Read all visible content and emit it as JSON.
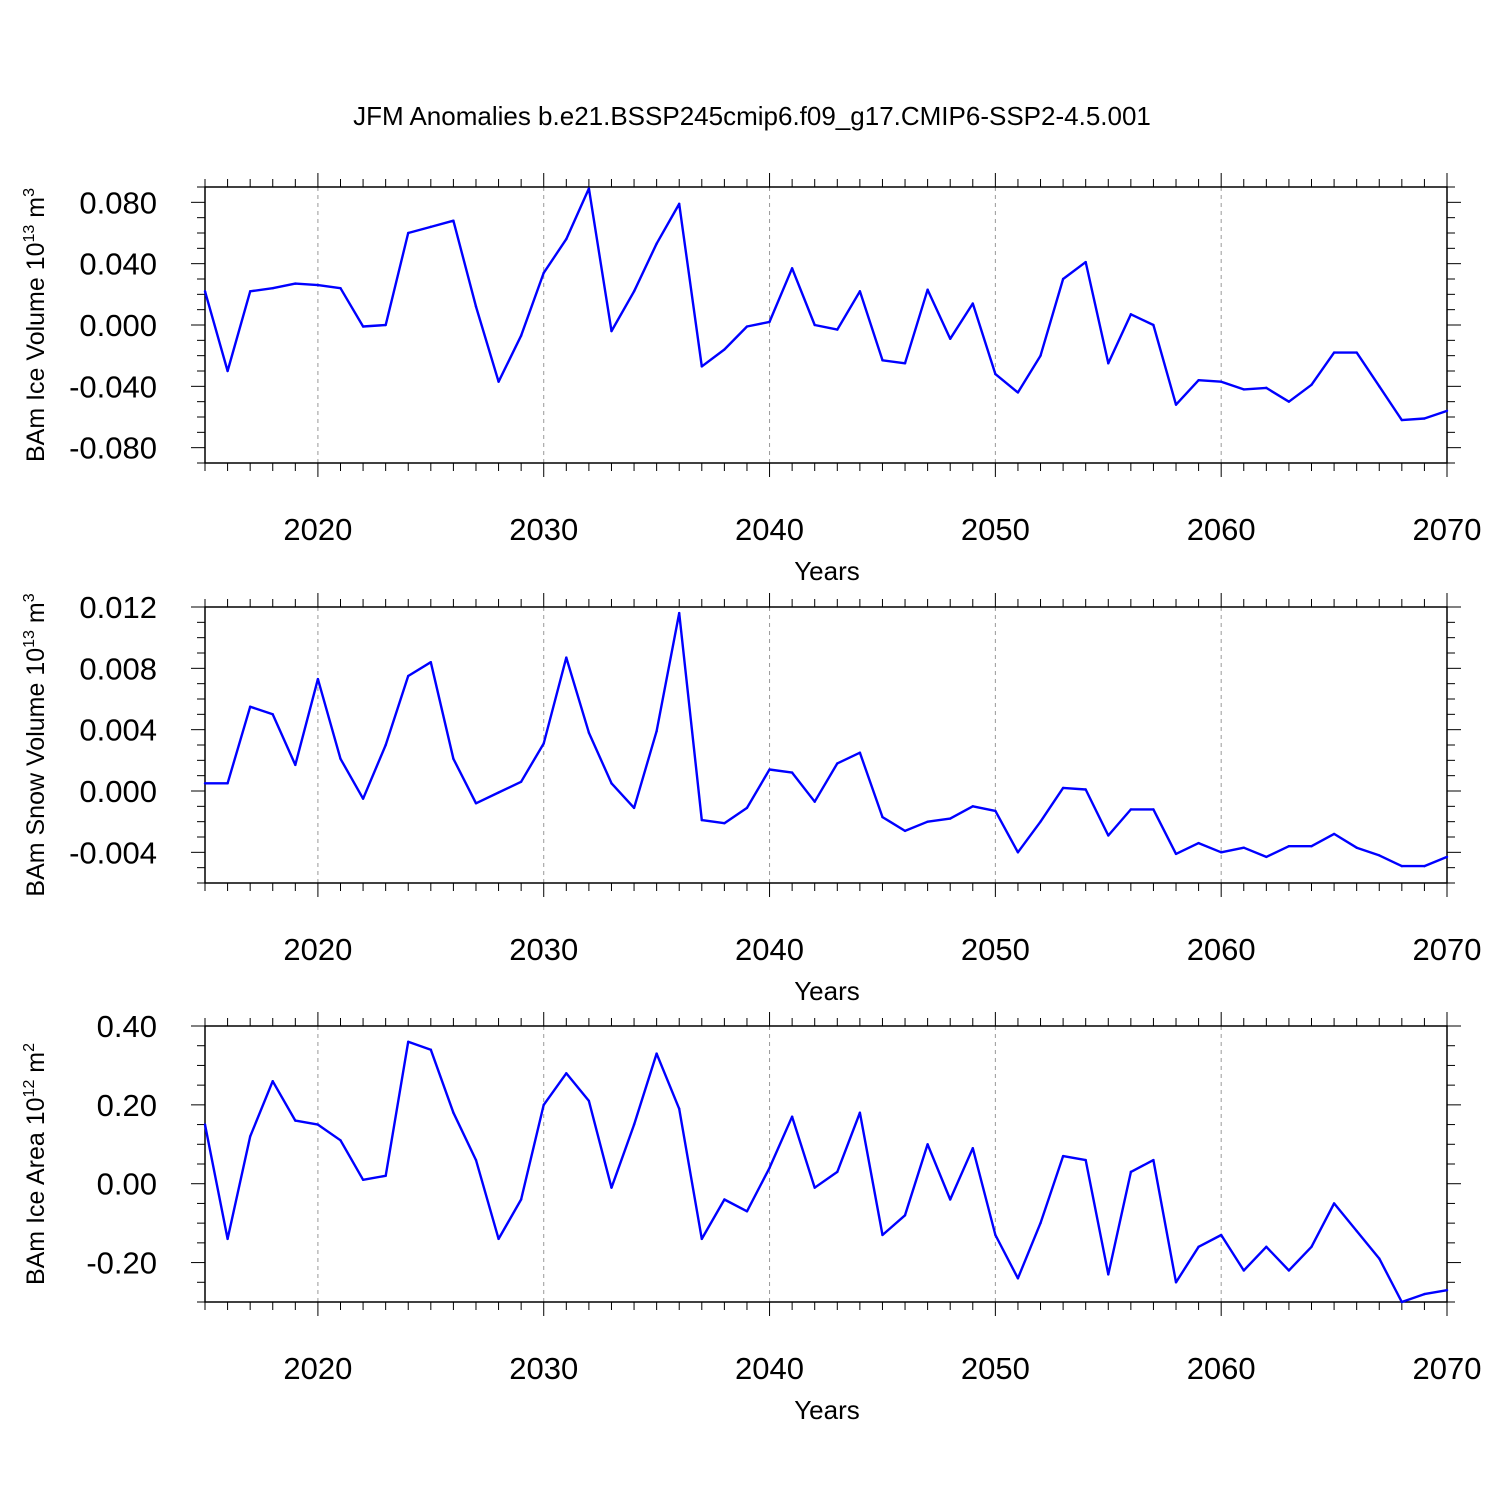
{
  "title": "JFM Anomalies b.e21.BSSP245cmip6.f09_g17.CMIP6-SSP2-4.5.001",
  "chart_data": [
    {
      "type": "line",
      "ylabel": "BAm Ice Volume 10",
      "ylabel_exp": "13",
      "ylabel_unit": "m",
      "ylabel_unit_exp": "3",
      "xlabel": "Years",
      "xlim": [
        2015,
        2070
      ],
      "ylim": [
        -0.09,
        0.09
      ],
      "x_ticks": [
        "2020",
        "2030",
        "2040",
        "2050",
        "2060",
        "2070"
      ],
      "y_ticks": [
        0.08,
        0.04,
        0.0,
        -0.04,
        -0.08
      ],
      "y_tick_labels": [
        "0.080",
        "0.040",
        "0.000",
        "-0.040",
        "-0.080"
      ],
      "grid": "vertical dashed at major x ticks",
      "color": "#0000ff",
      "x": [
        2015,
        2016,
        2017,
        2018,
        2019,
        2020,
        2021,
        2022,
        2023,
        2024,
        2025,
        2026,
        2027,
        2028,
        2029,
        2030,
        2031,
        2032,
        2033,
        2034,
        2035,
        2036,
        2037,
        2038,
        2039,
        2040,
        2041,
        2042,
        2043,
        2044,
        2045,
        2046,
        2047,
        2048,
        2049,
        2050,
        2051,
        2052,
        2053,
        2054,
        2055,
        2056,
        2057,
        2058,
        2059,
        2060,
        2061,
        2062,
        2063,
        2064,
        2065,
        2066,
        2067,
        2068,
        2069,
        2070
      ],
      "values": [
        0.022,
        -0.03,
        0.022,
        0.024,
        0.027,
        0.026,
        0.024,
        -0.001,
        0.0,
        0.06,
        0.064,
        0.068,
        0.012,
        -0.037,
        -0.007,
        0.034,
        0.056,
        0.089,
        -0.004,
        0.022,
        0.053,
        0.079,
        -0.027,
        -0.016,
        -0.001,
        0.002,
        0.037,
        0.0,
        -0.003,
        0.022,
        -0.023,
        -0.025,
        0.023,
        -0.009,
        0.014,
        -0.032,
        -0.044,
        -0.02,
        0.03,
        0.041,
        -0.025,
        0.007,
        0.0,
        -0.052,
        -0.036,
        -0.037,
        -0.042,
        -0.041,
        -0.05,
        -0.039,
        -0.018,
        -0.018,
        -0.04,
        -0.062,
        -0.061,
        -0.056
      ]
    },
    {
      "type": "line",
      "ylabel": "BAm Snow Volume 10",
      "ylabel_exp": "13",
      "ylabel_unit": "m",
      "ylabel_unit_exp": "3",
      "xlabel": "Years",
      "xlim": [
        2015,
        2070
      ],
      "ylim": [
        -0.006,
        0.012
      ],
      "x_ticks": [
        "2020",
        "2030",
        "2040",
        "2050",
        "2060",
        "2070"
      ],
      "y_ticks": [
        0.012,
        0.008,
        0.004,
        0.0,
        -0.004
      ],
      "y_tick_labels": [
        "0.012",
        "0.008",
        "0.004",
        "0.000",
        "-0.004"
      ],
      "grid": "vertical dashed at major x ticks",
      "color": "#0000ff",
      "x": [
        2015,
        2016,
        2017,
        2018,
        2019,
        2020,
        2021,
        2022,
        2023,
        2024,
        2025,
        2026,
        2027,
        2028,
        2029,
        2030,
        2031,
        2032,
        2033,
        2034,
        2035,
        2036,
        2037,
        2038,
        2039,
        2040,
        2041,
        2042,
        2043,
        2044,
        2045,
        2046,
        2047,
        2048,
        2049,
        2050,
        2051,
        2052,
        2053,
        2054,
        2055,
        2056,
        2057,
        2058,
        2059,
        2060,
        2061,
        2062,
        2063,
        2064,
        2065,
        2066,
        2067,
        2068,
        2069,
        2070
      ],
      "values": [
        0.0005,
        0.0005,
        0.0055,
        0.005,
        0.0017,
        0.0073,
        0.0021,
        -0.0005,
        0.003,
        0.0075,
        0.0084,
        0.0021,
        -0.0008,
        -0.0001,
        0.0006,
        0.0031,
        0.0087,
        0.0038,
        0.0005,
        -0.0011,
        0.0039,
        0.0116,
        -0.0019,
        -0.0021,
        -0.0011,
        0.0014,
        0.0012,
        -0.0007,
        0.0018,
        0.0025,
        -0.0017,
        -0.0026,
        -0.002,
        -0.0018,
        -0.001,
        -0.0013,
        -0.004,
        -0.002,
        0.0002,
        0.0001,
        -0.0029,
        -0.0012,
        -0.0012,
        -0.0041,
        -0.0034,
        -0.004,
        -0.0037,
        -0.0043,
        -0.0036,
        -0.0036,
        -0.0028,
        -0.0037,
        -0.0042,
        -0.0049,
        -0.0049,
        -0.0043
      ]
    },
    {
      "type": "line",
      "ylabel": "BAm Ice Area 10",
      "ylabel_exp": "12",
      "ylabel_unit": "m",
      "ylabel_unit_exp": "2",
      "xlabel": "Years",
      "xlim": [
        2015,
        2070
      ],
      "ylim": [
        -0.3,
        0.4
      ],
      "x_ticks": [
        "2020",
        "2030",
        "2040",
        "2050",
        "2060",
        "2070"
      ],
      "y_ticks": [
        0.4,
        0.2,
        0.0,
        -0.2
      ],
      "y_tick_labels": [
        "0.40",
        "0.20",
        "0.00",
        "-0.20"
      ],
      "grid": "vertical dashed at major x ticks",
      "color": "#0000ff",
      "x": [
        2015,
        2016,
        2017,
        2018,
        2019,
        2020,
        2021,
        2022,
        2023,
        2024,
        2025,
        2026,
        2027,
        2028,
        2029,
        2030,
        2031,
        2032,
        2033,
        2034,
        2035,
        2036,
        2037,
        2038,
        2039,
        2040,
        2041,
        2042,
        2043,
        2044,
        2045,
        2046,
        2047,
        2048,
        2049,
        2050,
        2051,
        2052,
        2053,
        2054,
        2055,
        2056,
        2057,
        2058,
        2059,
        2060,
        2061,
        2062,
        2063,
        2064,
        2065,
        2066,
        2067,
        2068,
        2069,
        2070
      ],
      "values": [
        0.15,
        -0.14,
        0.12,
        0.26,
        0.16,
        0.15,
        0.11,
        0.01,
        0.02,
        0.36,
        0.34,
        0.18,
        0.06,
        -0.14,
        -0.04,
        0.2,
        0.28,
        0.21,
        -0.01,
        0.15,
        0.33,
        0.19,
        -0.14,
        -0.04,
        -0.07,
        0.04,
        0.17,
        -0.01,
        0.03,
        0.18,
        -0.13,
        -0.08,
        0.1,
        -0.04,
        0.09,
        -0.13,
        -0.24,
        -0.1,
        0.07,
        0.06,
        -0.23,
        0.03,
        0.06,
        -0.25,
        -0.16,
        -0.13,
        -0.22,
        -0.16,
        -0.22,
        -0.16,
        -0.05,
        -0.12,
        -0.19,
        -0.3,
        -0.28,
        -0.27
      ]
    }
  ]
}
